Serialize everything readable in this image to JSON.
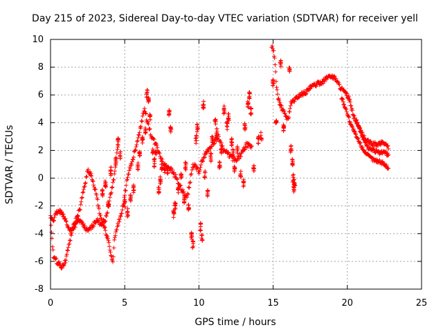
{
  "chart_data": {
    "type": "scatter",
    "title": "Day 215 of 2023, Sidereal Day-to-day VTEC variation (SDTVAR) for receiver yell",
    "xlabel": "GPS time / hours",
    "ylabel": "SDTVAR / TECUs",
    "xlim": [
      0,
      25
    ],
    "ylim": [
      -8,
      10
    ],
    "xticks": [
      0,
      5,
      10,
      15,
      20,
      25
    ],
    "yticks": [
      -8,
      -6,
      -4,
      -2,
      0,
      2,
      4,
      6,
      8,
      10
    ],
    "grid": true,
    "marker": "+",
    "color": "#ff0000",
    "series": [
      {
        "name": "SDTVAR",
        "trace": [
          [
            0.0,
            -2.8
          ],
          [
            0.1,
            -4.5
          ],
          [
            0.2,
            -5.6
          ],
          [
            0.35,
            -5.9
          ],
          [
            0.6,
            -6.2
          ],
          [
            0.8,
            -6.4
          ],
          [
            1.0,
            -6.0
          ],
          [
            1.2,
            -5.0
          ],
          [
            1.4,
            -4.0
          ],
          [
            1.6,
            -3.3
          ],
          [
            1.8,
            -2.8
          ],
          [
            2.0,
            -2.2
          ],
          [
            2.2,
            -1.0
          ],
          [
            2.4,
            0.0
          ],
          [
            2.5,
            0.6
          ],
          [
            2.7,
            0.3
          ],
          [
            2.9,
            -0.5
          ],
          [
            3.1,
            -1.2
          ],
          [
            3.3,
            -2.5
          ],
          [
            3.5,
            -3.2
          ],
          [
            3.7,
            -3.8
          ],
          [
            3.9,
            -4.5
          ],
          [
            4.1,
            -5.7
          ],
          [
            4.2,
            -6.0
          ],
          [
            4.3,
            -4.5
          ],
          [
            4.5,
            -3.5
          ],
          [
            4.7,
            -2.8
          ],
          [
            4.9,
            -2.0
          ],
          [
            5.1,
            -0.5
          ],
          [
            5.3,
            0.5
          ],
          [
            5.5,
            1.2
          ],
          [
            5.8,
            2.5
          ],
          [
            6.1,
            3.8
          ],
          [
            6.3,
            5.0
          ],
          [
            6.5,
            4.2
          ],
          [
            6.8,
            3.0
          ],
          [
            7.2,
            2.2
          ],
          [
            7.6,
            1.0
          ],
          [
            8.0,
            0.8
          ],
          [
            8.4,
            0.2
          ],
          [
            8.8,
            -0.8
          ],
          [
            9.2,
            -1.5
          ],
          [
            9.6,
            1.0
          ],
          [
            10.0,
            0.5
          ],
          [
            10.3,
            1.5
          ],
          [
            10.6,
            2.0
          ],
          [
            11.0,
            2.6
          ],
          [
            11.3,
            3.0
          ],
          [
            11.7,
            2.0
          ],
          [
            12.1,
            1.6
          ],
          [
            12.5,
            1.2
          ],
          [
            12.9,
            1.8
          ],
          [
            13.2,
            2.4
          ],
          [
            13.6,
            2.2
          ]
        ],
        "trace_lower": [
          [
            0.0,
            -2.8
          ],
          [
            0.2,
            -3.0
          ],
          [
            0.4,
            -2.5
          ],
          [
            0.6,
            -2.4
          ],
          [
            0.8,
            -2.6
          ],
          [
            1.0,
            -3.0
          ],
          [
            1.3,
            -3.8
          ],
          [
            1.6,
            -3.5
          ],
          [
            1.9,
            -3.0
          ],
          [
            2.2,
            -3.4
          ],
          [
            2.5,
            -3.8
          ],
          [
            2.8,
            -3.5
          ],
          [
            3.1,
            -3.0
          ],
          [
            3.4,
            -3.3
          ],
          [
            3.7,
            -3.0
          ],
          [
            4.0,
            -1.5
          ],
          [
            4.3,
            0.2
          ],
          [
            4.5,
            2.0
          ],
          [
            4.6,
            3.0
          ]
        ],
        "trace_late": [
          [
            14.9,
            9.5
          ],
          [
            15.0,
            9.3
          ],
          [
            15.1,
            8.6
          ],
          [
            15.2,
            7.0
          ],
          [
            15.3,
            6.0
          ],
          [
            15.4,
            5.5
          ],
          [
            15.6,
            5.0
          ],
          [
            15.8,
            4.6
          ],
          [
            16.0,
            4.2
          ],
          [
            16.2,
            5.4
          ],
          [
            16.5,
            5.7
          ],
          [
            16.8,
            6.0
          ],
          [
            17.2,
            6.2
          ],
          [
            17.6,
            6.6
          ],
          [
            18.0,
            6.8
          ],
          [
            18.4,
            7.0
          ],
          [
            18.8,
            7.4
          ],
          [
            19.2,
            7.2
          ],
          [
            19.5,
            6.6
          ],
          [
            19.8,
            6.2
          ],
          [
            20.1,
            5.8
          ],
          [
            20.4,
            4.5
          ],
          [
            20.8,
            3.6
          ],
          [
            21.2,
            2.8
          ],
          [
            21.6,
            2.5
          ],
          [
            22.0,
            2.4
          ],
          [
            22.4,
            2.6
          ],
          [
            22.8,
            2.2
          ]
        ],
        "trace_late_lower": [
          [
            19.6,
            5.8
          ],
          [
            19.9,
            5.0
          ],
          [
            20.2,
            4.0
          ],
          [
            20.6,
            3.0
          ],
          [
            21.0,
            2.2
          ],
          [
            21.4,
            1.6
          ],
          [
            21.8,
            1.3
          ],
          [
            22.2,
            1.2
          ],
          [
            22.5,
            1.0
          ],
          [
            22.8,
            0.7
          ]
        ],
        "trace_late_mid": [
          [
            20.6,
            4.2
          ],
          [
            21.0,
            3.0
          ],
          [
            21.4,
            2.2
          ],
          [
            21.8,
            2.0
          ],
          [
            22.2,
            1.8
          ],
          [
            22.5,
            1.9
          ],
          [
            22.8,
            1.6
          ]
        ],
        "scatter": [
          [
            3.5,
            -1.0
          ],
          [
            3.7,
            -0.4
          ],
          [
            3.9,
            -1.8
          ],
          [
            4.05,
            0.5
          ],
          [
            4.4,
            1.2
          ],
          [
            4.55,
            2.6
          ],
          [
            4.7,
            1.6
          ],
          [
            5.0,
            -1.8
          ],
          [
            5.2,
            -2.5
          ],
          [
            5.4,
            -1.5
          ],
          [
            5.6,
            -0.8
          ],
          [
            5.9,
            0.8
          ],
          [
            6.0,
            1.8
          ],
          [
            6.2,
            2.8
          ],
          [
            6.4,
            3.4
          ],
          [
            6.5,
            6.1
          ],
          [
            6.6,
            5.6
          ],
          [
            6.7,
            4.5
          ],
          [
            6.9,
            2.0
          ],
          [
            7.0,
            1.1
          ],
          [
            7.1,
            1.8
          ],
          [
            7.3,
            -0.8
          ],
          [
            7.4,
            -0.2
          ],
          [
            7.5,
            0.9
          ],
          [
            7.7,
            0.7
          ],
          [
            7.9,
            0.5
          ],
          [
            8.0,
            4.8
          ],
          [
            8.1,
            3.5
          ],
          [
            8.3,
            -2.6
          ],
          [
            8.4,
            -2.0
          ],
          [
            8.6,
            -0.8
          ],
          [
            8.8,
            0.2
          ],
          [
            9.0,
            -1.5
          ],
          [
            9.1,
            0.9
          ],
          [
            9.3,
            -2.2
          ],
          [
            9.5,
            -4.2
          ],
          [
            9.6,
            -4.8
          ],
          [
            9.8,
            2.8
          ],
          [
            9.9,
            3.6
          ],
          [
            10.1,
            -3.5
          ],
          [
            10.2,
            -4.2
          ],
          [
            10.3,
            5.3
          ],
          [
            10.4,
            0.3
          ],
          [
            10.6,
            -1.0
          ],
          [
            10.8,
            1.5
          ],
          [
            10.9,
            2.8
          ],
          [
            11.1,
            4.2
          ],
          [
            11.2,
            3.3
          ],
          [
            11.4,
            1.0
          ],
          [
            11.5,
            2.0
          ],
          [
            11.7,
            4.9
          ],
          [
            11.9,
            3.8
          ],
          [
            12.0,
            4.4
          ],
          [
            12.2,
            2.6
          ],
          [
            12.3,
            1.8
          ],
          [
            12.4,
            0.6
          ],
          [
            12.6,
            2.1
          ],
          [
            12.8,
            0.3
          ],
          [
            13.0,
            -0.4
          ],
          [
            13.1,
            3.7
          ],
          [
            13.3,
            5.4
          ],
          [
            13.4,
            6.0
          ],
          [
            13.5,
            4.8
          ],
          [
            13.7,
            0.6
          ],
          [
            14.0,
            2.8
          ],
          [
            14.2,
            3.0
          ],
          [
            15.0,
            6.8
          ],
          [
            15.2,
            4.0
          ],
          [
            15.5,
            8.3
          ],
          [
            15.7,
            3.6
          ],
          [
            16.1,
            7.7
          ],
          [
            16.2,
            2.1
          ],
          [
            16.3,
            1.2
          ],
          [
            16.35,
            0.0
          ],
          [
            16.4,
            -0.7
          ],
          [
            16.45,
            -0.3
          ]
        ]
      }
    ]
  }
}
